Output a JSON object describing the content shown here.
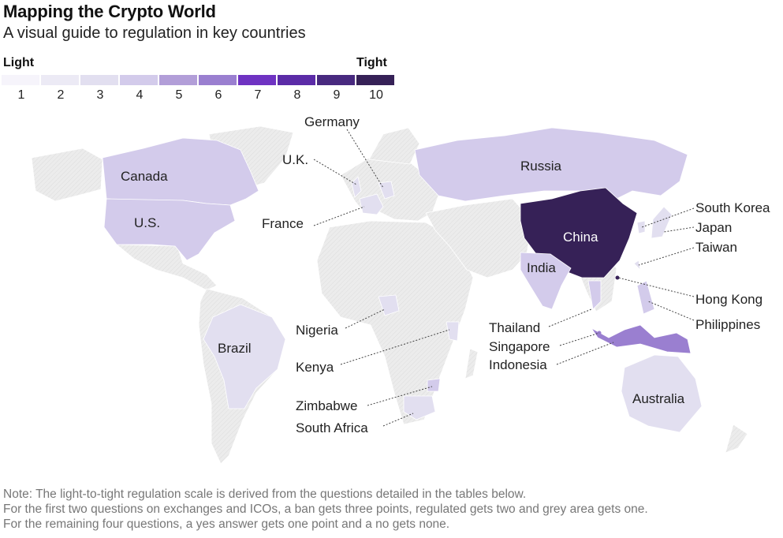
{
  "header": {
    "title": "Mapping the Crypto World",
    "subtitle": "A visual guide to regulation in key countries"
  },
  "legend": {
    "low_label": "Light",
    "high_label": "Tight",
    "steps": [
      {
        "label": "1",
        "color": "#f6f4fb"
      },
      {
        "label": "2",
        "color": "#eceaf5"
      },
      {
        "label": "3",
        "color": "#e2dff0"
      },
      {
        "label": "4",
        "color": "#d3cbeb"
      },
      {
        "label": "5",
        "color": "#b29ed8"
      },
      {
        "label": "6",
        "color": "#9a7fd0"
      },
      {
        "label": "7",
        "color": "#6f33c2"
      },
      {
        "label": "8",
        "color": "#5b2ba7"
      },
      {
        "label": "9",
        "color": "#48297f"
      },
      {
        "label": "10",
        "color": "#362157"
      }
    ]
  },
  "map": {
    "no_data_color": "#ececec",
    "labels": {
      "germany": "Germany",
      "uk": "U.K.",
      "france": "France",
      "canada": "Canada",
      "us": "U.S.",
      "russia": "Russia",
      "china": "China",
      "india": "India",
      "brazil": "Brazil",
      "nigeria": "Nigeria",
      "kenya": "Kenya",
      "zimbabwe": "Zimbabwe",
      "south_africa": "South Africa",
      "thailand": "Thailand",
      "singapore": "Singapore",
      "indonesia": "Indonesia",
      "australia": "Australia",
      "south_korea": "South Korea",
      "japan": "Japan",
      "taiwan": "Taiwan",
      "hong_kong": "Hong Kong",
      "philippines": "Philippines"
    }
  },
  "notes": [
    "Note: The light-to-tight regulation scale is derived from the questions detailed in the tables below.",
    "For the first two questions on exchanges and ICOs, a ban gets three points, regulated gets two and grey area gets one.",
    "For the remaining four questions, a yes answer gets one point and a no gets none."
  ]
}
